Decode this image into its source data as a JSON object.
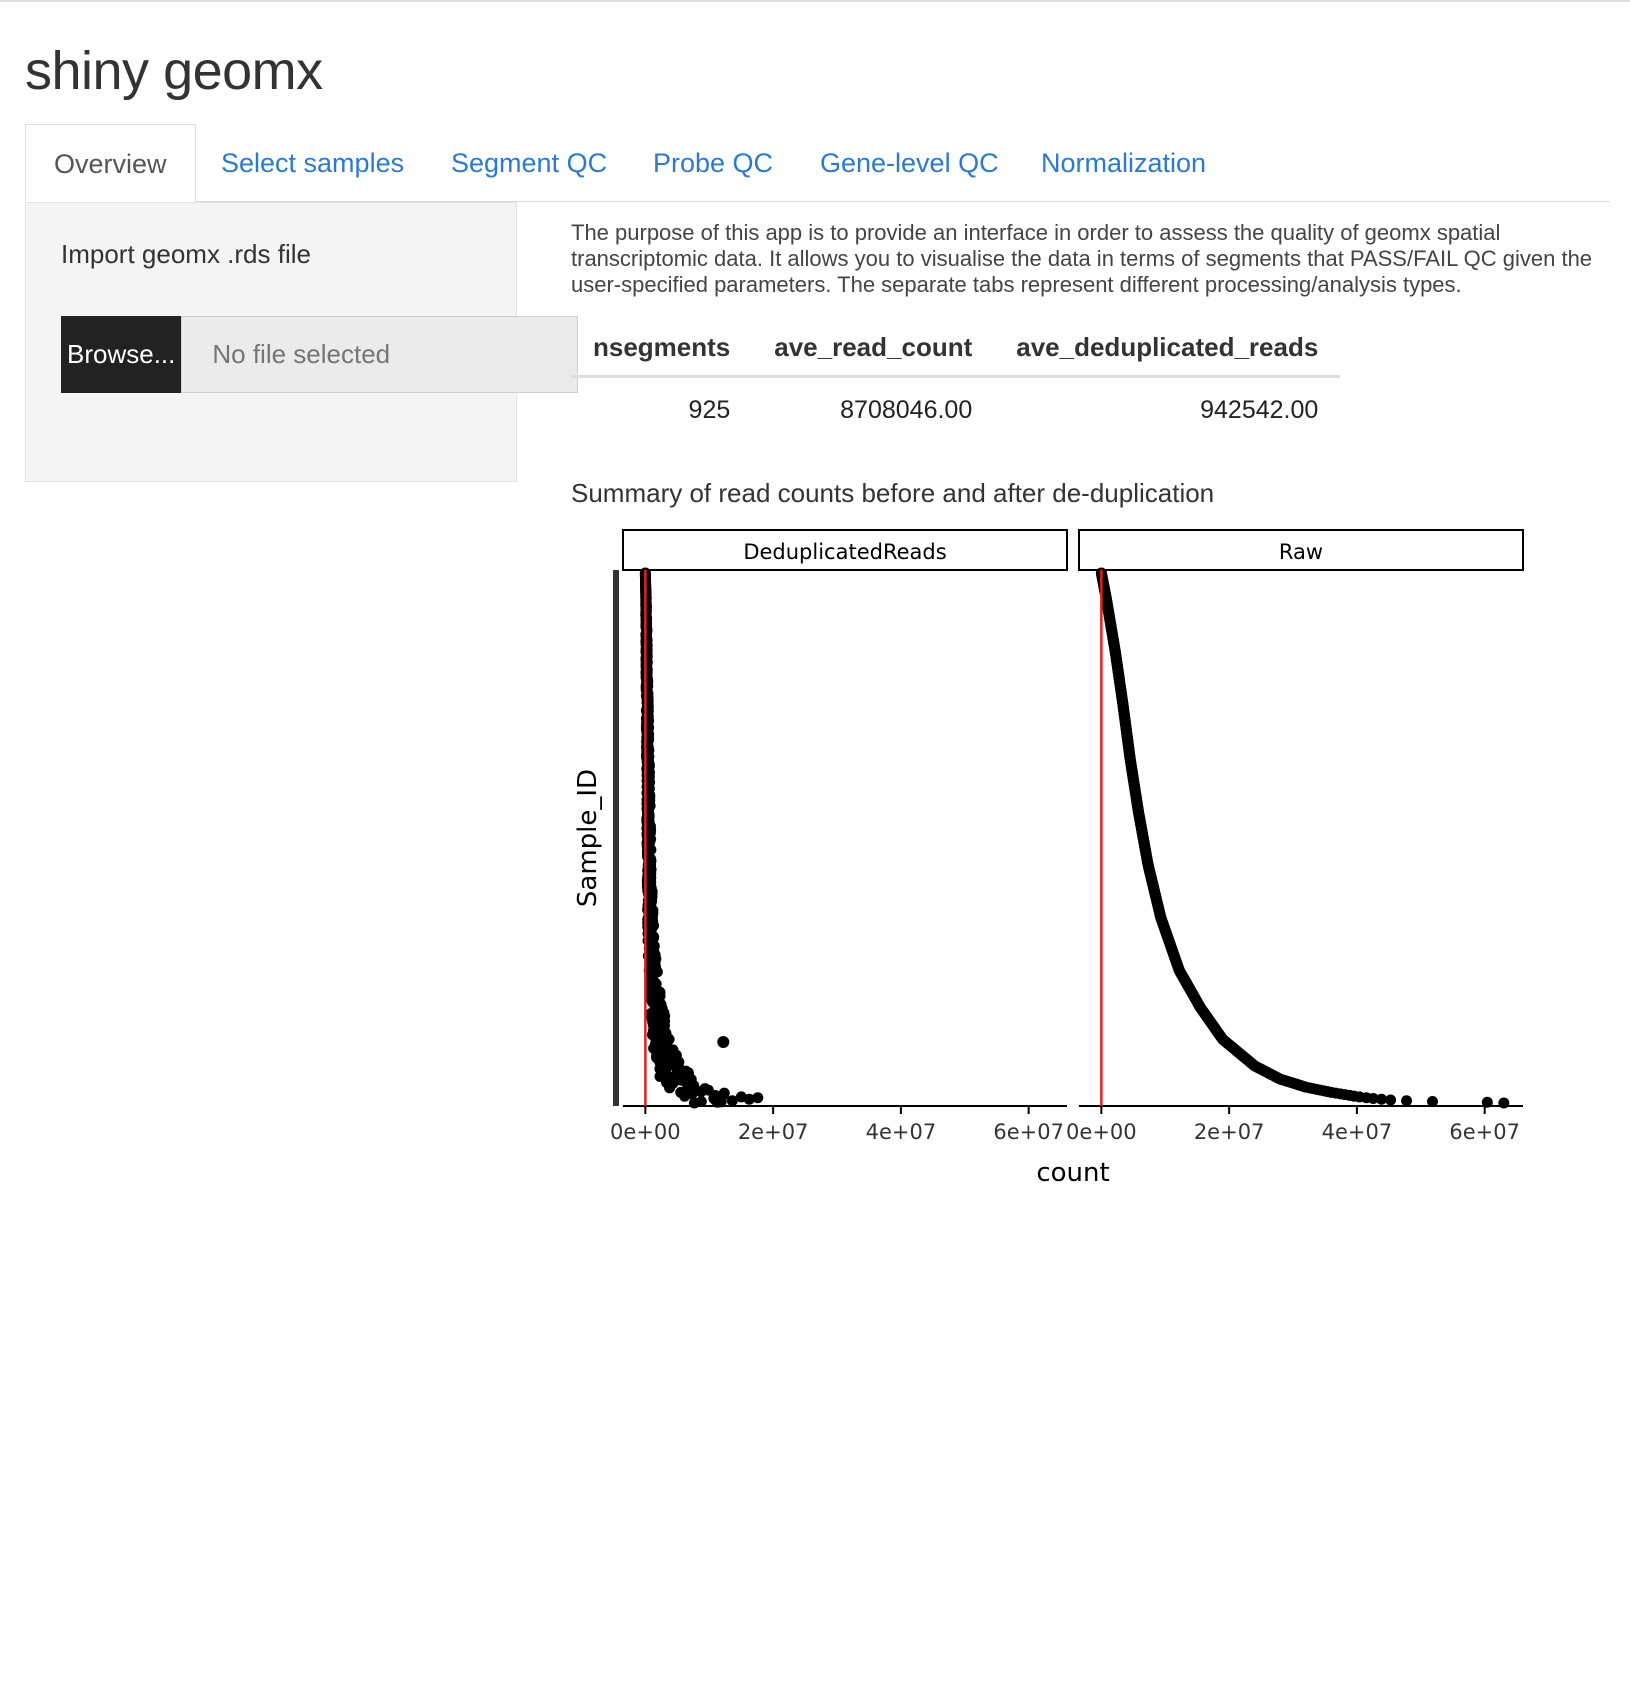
{
  "app": {
    "title": "shiny geomx"
  },
  "tabs": [
    {
      "label": "Overview",
      "active": true
    },
    {
      "label": "Select samples",
      "active": false
    },
    {
      "label": "Segment QC",
      "active": false
    },
    {
      "label": "Probe QC",
      "active": false
    },
    {
      "label": "Gene-level QC",
      "active": false
    },
    {
      "label": "Normalization",
      "active": false
    }
  ],
  "sidebar": {
    "upload_label": "Import geomx .rds file",
    "browse_label": "Browse...",
    "file_placeholder": "No file selected"
  },
  "main": {
    "description": "The purpose of this app is to provide an interface in order to assess the quality of geomx spatial transcriptomic data. It allows you to visualise the data in terms of segments that PASS/FAIL QC given the user-specified parameters. The separate tabs represent different processing/analysis types.",
    "table": {
      "headers": [
        "nsegments",
        "ave_read_count",
        "ave_deduplicated_reads"
      ],
      "rows": [
        [
          "925",
          "8708046.00",
          "942542.00"
        ]
      ]
    },
    "plot_title": "Summary of read counts before and after de-duplication"
  },
  "chart_data": {
    "type": "scatter",
    "facets": [
      "DeduplicatedReads",
      "Raw"
    ],
    "xlabel": "count",
    "ylabel": "Sample_ID",
    "xlim": [
      -3500000,
      66000000
    ],
    "x_ticks": [
      0,
      20000000,
      40000000,
      60000000
    ],
    "x_tick_labels": [
      "0e+00",
      "2e+07",
      "4e+07",
      "6e+07"
    ],
    "n_samples": 925,
    "y_axis_ticks_shown": false,
    "reference_line": {
      "x": 0,
      "color": "#e3211c"
    },
    "point_color": "#000000",
    "series": [
      {
        "name": "DeduplicatedReads",
        "sample_values": [
          [
            1.0,
            0
          ],
          [
            0.95,
            100000
          ],
          [
            0.9,
            150000
          ],
          [
            0.8,
            250000
          ],
          [
            0.7,
            350000
          ],
          [
            0.6,
            450000
          ],
          [
            0.5,
            550000
          ],
          [
            0.4,
            700000
          ],
          [
            0.3,
            900000
          ],
          [
            0.25,
            1200000
          ],
          [
            0.2,
            1600000
          ],
          [
            0.15,
            2100000
          ],
          [
            0.1,
            2900000
          ],
          [
            0.07,
            3800000
          ],
          [
            0.05,
            4800000
          ],
          [
            0.03,
            6000000
          ],
          [
            0.02,
            8500000
          ],
          [
            0.01,
            12000000
          ]
        ],
        "outliers": [
          [
            0.115,
            12200000
          ],
          [
            0.003,
            11800000
          ]
        ]
      },
      {
        "name": "Raw",
        "sample_values": [
          [
            1.0,
            0
          ],
          [
            0.95,
            800000
          ],
          [
            0.85,
            2200000
          ],
          [
            0.75,
            3400000
          ],
          [
            0.65,
            4500000
          ],
          [
            0.55,
            5800000
          ],
          [
            0.45,
            7300000
          ],
          [
            0.35,
            9300000
          ],
          [
            0.25,
            12200000
          ],
          [
            0.18,
            15500000
          ],
          [
            0.12,
            19000000
          ],
          [
            0.07,
            24000000
          ],
          [
            0.045,
            28000000
          ],
          [
            0.03,
            32000000
          ],
          [
            0.02,
            36000000
          ],
          [
            0.012,
            40000000
          ],
          [
            0.008,
            43000000
          ],
          [
            0.005,
            46000000
          ],
          [
            0.003,
            51000000
          ],
          [
            0.001,
            63000000
          ]
        ]
      }
    ]
  }
}
